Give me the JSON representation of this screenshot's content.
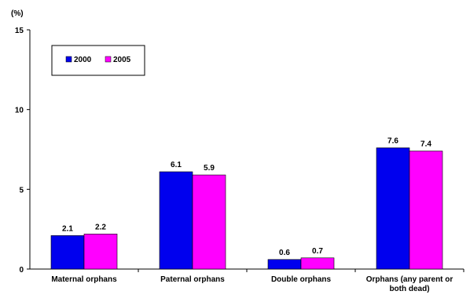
{
  "chart_data": {
    "type": "bar",
    "unit": "(%)",
    "categories": [
      [
        "Maternal orphans"
      ],
      [
        "Paternal orphans"
      ],
      [
        "Double orphans"
      ],
      [
        "Orphans (any parent or",
        "both dead)"
      ]
    ],
    "series": [
      {
        "name": "2000",
        "color": "#0000ee",
        "values": [
          2.1,
          6.1,
          0.6,
          7.6
        ],
        "labels": [
          "2.1",
          "6.1",
          "0.6",
          "7.6"
        ]
      },
      {
        "name": "2005",
        "color": "#ff00ff",
        "values": [
          2.2,
          5.9,
          0.7,
          7.4
        ],
        "labels": [
          "2.2",
          "5.9",
          "0.7",
          "7.4"
        ]
      }
    ],
    "ylim": [
      0,
      15
    ],
    "yticks": [
      0,
      5,
      10,
      15
    ],
    "legend_position": "top-left",
    "grid": false
  }
}
